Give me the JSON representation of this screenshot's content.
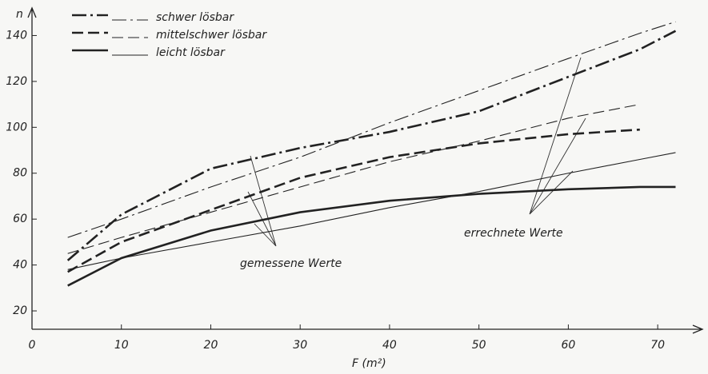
{
  "chart_data": {
    "type": "line",
    "x_label": "F   (m²)",
    "y_label": "n",
    "annotations": [
      "gemessene Werte",
      "errechnete Werte"
    ],
    "x": [
      4,
      10,
      20,
      30,
      40,
      50,
      60,
      68,
      72
    ],
    "series": [
      {
        "name": "schwer lösbar",
        "color": "#222222",
        "dash": "18 5 3 5",
        "measured": [
          42,
          62,
          82,
          91,
          98,
          107,
          122,
          134,
          142
        ],
        "computed": [
          52,
          60,
          74,
          87,
          102,
          116,
          130,
          141,
          146
        ]
      },
      {
        "name": "mittelschwer lösbar",
        "color": "#222222",
        "dash": "14 6",
        "measured": [
          37,
          50,
          64,
          78,
          87,
          93,
          97,
          99,
          null
        ],
        "computed": [
          45,
          52,
          63,
          74,
          85,
          94,
          104,
          110,
          null
        ]
      },
      {
        "name": "leicht lösbar",
        "color": "#222222",
        "dash": "none",
        "measured": [
          31,
          43,
          55,
          63,
          68,
          71,
          73,
          74,
          74
        ],
        "computed": [
          38,
          43,
          50,
          57,
          65,
          72,
          80,
          86,
          89
        ]
      }
    ],
    "xlim": [
      0,
      75
    ],
    "ylim": [
      12,
      152
    ],
    "xticks": [
      0,
      10,
      20,
      30,
      40,
      50,
      60,
      70
    ],
    "yticks": [
      20,
      40,
      60,
      80,
      100,
      120,
      140
    ],
    "grid": false
  }
}
